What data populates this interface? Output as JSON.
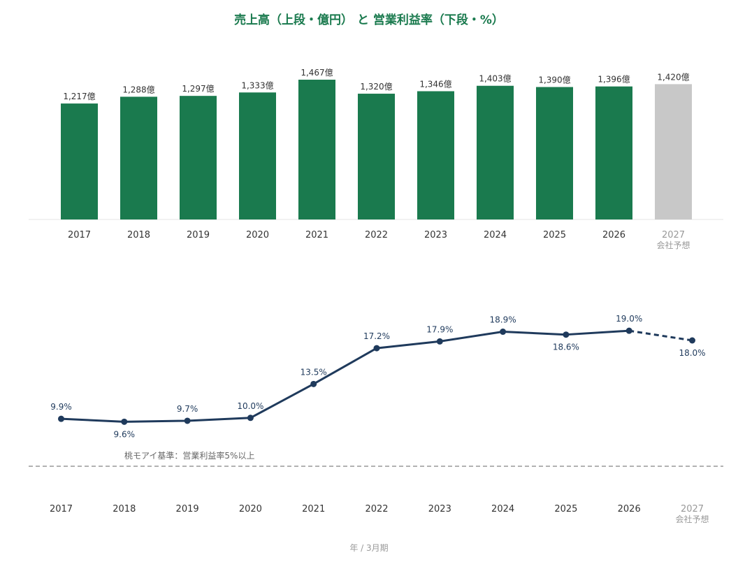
{
  "title": "売上高（上段・億円） と 営業利益率（下段・%）",
  "footer": "年 / 3月期",
  "projection_note": "会社予想",
  "colors": {
    "title": "#1a7a4e",
    "bar_actual": "#1a7a4e",
    "bar_projected": "#c8c8c8",
    "line": "#1f3a5c",
    "reference": "#999999"
  },
  "chart_data": [
    {
      "type": "bar",
      "categories": [
        "2017",
        "2018",
        "2019",
        "2020",
        "2021",
        "2022",
        "2023",
        "2024",
        "2025",
        "2026",
        "2027"
      ],
      "values": [
        1217,
        1288,
        1297,
        1333,
        1467,
        1320,
        1346,
        1403,
        1390,
        1396,
        1420
      ],
      "labels": [
        "1,217億",
        "1,288億",
        "1,297億",
        "1,333億",
        "1,467億",
        "1,320億",
        "1,346億",
        "1,403億",
        "1,390億",
        "1,396億",
        "1,420億"
      ],
      "projected": [
        false,
        false,
        false,
        false,
        false,
        false,
        false,
        false,
        false,
        false,
        true
      ],
      "unit": "億円",
      "ylim": [
        0,
        1467
      ]
    },
    {
      "type": "line",
      "categories": [
        "2017",
        "2018",
        "2019",
        "2020",
        "2021",
        "2022",
        "2023",
        "2024",
        "2025",
        "2026",
        "2027"
      ],
      "values": [
        9.9,
        9.6,
        9.7,
        10.0,
        13.5,
        17.2,
        17.9,
        18.9,
        18.6,
        19.0,
        18.0
      ],
      "labels": [
        "9.9%",
        "9.6%",
        "9.7%",
        "10.0%",
        "13.5%",
        "17.2%",
        "17.9%",
        "18.9%",
        "18.6%",
        "19.0%",
        "18.0%"
      ],
      "label_position": [
        "above",
        "below",
        "above",
        "above",
        "above",
        "above",
        "above",
        "above",
        "below",
        "above",
        "below"
      ],
      "projected": [
        false,
        false,
        false,
        false,
        false,
        false,
        false,
        false,
        false,
        false,
        true
      ],
      "unit": "%",
      "reference_line": {
        "value": 5,
        "label": "桃モアイ基準：営業利益率5%以上",
        "style": "dashed"
      }
    }
  ]
}
